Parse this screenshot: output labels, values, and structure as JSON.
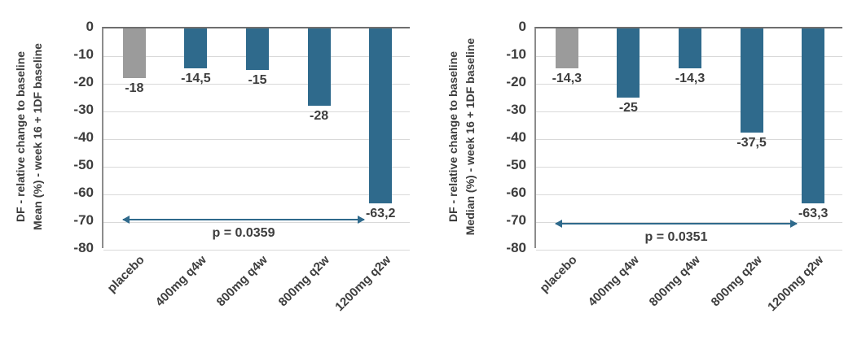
{
  "figure": {
    "background": "#ffffff"
  },
  "colors": {
    "placebo_bar": "#9b9b9b",
    "treatment_bar": "#2f6a8c",
    "zero_axis_line": "#6e6e6e",
    "y_axis_line": "#8c8c8c",
    "gridline": "#d9d9d9",
    "text": "#3d3d3d",
    "annotation_arrow": "#2f6a8c"
  },
  "chart_data": [
    {
      "type": "bar",
      "panel": "left",
      "title": "",
      "ylabel_lines": [
        "DF - relative change to baseline",
        "Mean (%) - week 16 + 1DF baseline"
      ],
      "xlabel": "",
      "categories": [
        "placebo",
        "400mg q4w",
        "800mg q4w",
        "800mg q2w",
        "1200mg q2w"
      ],
      "values": [
        -18,
        -14.5,
        -15,
        -28,
        -63.2
      ],
      "value_labels": [
        "-18",
        "-14,5",
        "-15",
        "-28",
        "-63,2"
      ],
      "bar_roles": [
        "placebo",
        "treatment",
        "treatment",
        "treatment",
        "treatment"
      ],
      "ylim": [
        -80,
        0
      ],
      "yticks": [
        0,
        -10,
        -20,
        -30,
        -40,
        -50,
        -60,
        -70,
        -80
      ],
      "grid": true,
      "legend": "none",
      "annotation": {
        "label": "p = 0.0359",
        "type": "double-headed-arrow",
        "from_category": "placebo",
        "to_category": "1200mg q2w",
        "y_value": -69
      }
    },
    {
      "type": "bar",
      "panel": "right",
      "title": "",
      "ylabel_lines": [
        "DF - relative change to baseline",
        "Median (%) - week 16 + 1DF baseline"
      ],
      "xlabel": "",
      "categories": [
        "placebo",
        "400mg q4w",
        "800mg q4w",
        "800mg q2w",
        "1200mg q2w"
      ],
      "values": [
        -14.3,
        -25,
        -14.3,
        -37.5,
        -63.3
      ],
      "value_labels": [
        "-14,3",
        "-25",
        "-14,3",
        "-37,5",
        "-63,3"
      ],
      "bar_roles": [
        "placebo",
        "treatment",
        "treatment",
        "treatment",
        "treatment"
      ],
      "ylim": [
        -80,
        0
      ],
      "yticks": [
        0,
        -10,
        -20,
        -30,
        -40,
        -50,
        -60,
        -70,
        -80
      ],
      "grid": true,
      "legend": "none",
      "annotation": {
        "label": "p = 0.0351",
        "type": "double-headed-arrow",
        "from_category": "placebo",
        "to_category": "1200mg q2w",
        "y_value": -70.5
      }
    }
  ]
}
